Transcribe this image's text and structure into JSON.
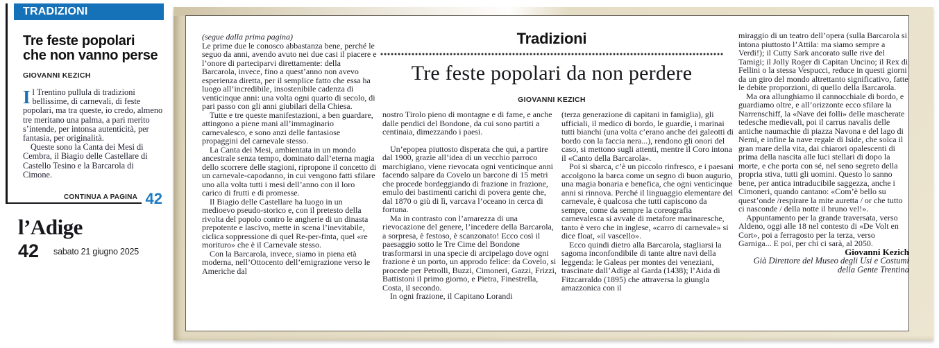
{
  "colors": {
    "accent_blue": "#1571b8",
    "page_ref_blue": "#1e7bc4",
    "panel_beige": "#e6ddc6"
  },
  "sidebar": {
    "section_label": "TRADIZIONI",
    "headline": "Tre feste popolari che non vanno perse",
    "byline": "GIOVANNI KEZICH",
    "dropcap": "I",
    "body_p1": "l Trentino pullula di tradizioni bellissime, di carnevali, di feste popolari, ma tra queste, io credo, almeno tre meritano una palma, a pari merito s’intende, per intonsa autenticità, per fantasia, per originalità.",
    "body_p2": "Queste sono la Canta dei Mesi di Cembra, il Biagio delle Castellare di Castello Tesino e la Barcarola di Cimone.",
    "continua_label": "CONTINUA A PAGINA",
    "continua_page": "42"
  },
  "masthead": {
    "logo": "l’Adige",
    "page_number": "42",
    "date": "sabato 21 giugno 2025"
  },
  "article": {
    "kicker": "Tradizioni",
    "title": "Tre feste popolari da non perdere",
    "byline": "GIOVANNI KEZICH",
    "continuation_note": "(segue dalla prima pagina)",
    "col1": {
      "p1": "Le prime due le conosco abbastanza bene, perché le seguo da anni, avendo avuto nei due casi il piacere e l’onore di parteciparvi direttamente: della Barcarola, invece, fino a quest’anno non avevo esperienza diretta, per il semplice fatto che essa ha luogo all’incredibile, insostenibile cadenza di venticinque anni: una volta ogni quarto di secolo, di pari passo con gli anni giubilari della Chiesa.",
      "p2": "Tutte e tre queste manifestazioni, a ben guardare, attingono a piene mani all’immaginario carnevalesco, e sono anzi delle fantasiose propaggini del carnevale stesso.",
      "p3": "La Canta dei Mesi, ambientata in un mondo ancestrale senza tempo, dominato dall’eterna magia dello scorrere delle stagioni, ripropone il concetto di un carnevale-capodanno, in cui vengono fatti sfilare uno alla volta tutti i mesi dell’anno con il loro carico di frutti e di promesse.",
      "p4": "Il Biagio delle Castellare ha luogo in un medioevo pseudo-storico e, con il pretesto della rivolta del popolo contro le angherie di un dinasta prepotente e lascivo, mette in scena l’inevitabile, ciclica soppressione di quel Re-per-finta, quel «re morituro» che è il Carnevale stesso.",
      "p5": "Con la Barcarola, invece, siamo in piena età moderna, nell’Ottocento dell’emigrazione verso le Americhe dal"
    },
    "col2": {
      "p1": "nostro Tirolo pieno di montagne e di fame, e anche dalle pendici del Bondone, da cui sono partiti a centinaia, dimezzando i paesi.",
      "p2": "Un’epopea piuttosto disperata che qui, a partire dal 1900, grazie all’idea di un vecchio parroco marchigiano, viene rievocata ogni venticinque anni facendo salpare da Covelo un barcone di 15 metri che procede bordeggiando di frazione in frazione, emulo dei bastimenti carichi di povera gente che, dal 1870 o giù di lì, varcava l’oceano in cerca di fortuna.",
      "p3": "Ma in contrasto con l’amarezza di una rievocazione del genere, l’incedere della Barcarola, a sorpresa, è festoso, è scanzonato! Ecco così il paesaggio sotto le Tre Cime del Bondone trasformarsi in una specie di arcipelago dove ogni frazione è un porto, un approdo felice: da Covelo, si procede per Petrolli, Buzzi, Cimoneri, Gazzi, Frizzi, Battistoni il primo giorno, e Pietra, Finestrella, Costa, il secondo.",
      "p4": "In ogni frazione, il Capitano Lorandi"
    },
    "col3": {
      "p1": "(terza generazione di capitani in famiglia), gli ufficiali, il medico di bordo, le guardie, i marinai tutti bianchi (una volta c’erano anche dei galeotti di bordo con la faccia nera...), rendono gli onori del caso, si mettono sugli attenti, mentre il Coro intona il «Canto della Barcarola».",
      "p2": "Poi si sbarca, c’è un piccolo rinfresco, e i paesani accolgono la barca come un segno di buon augurio, una magia bonaria e benefica, che ogni venticinque anni si rinnova. Perché il linguaggio elementare del carnevale, è qualcosa che tutti capiscono da sempre, come da sempre la coreografia carnevalesca si avvale di metafore marinaresche, tanto è vero che in inglese, «carro di carnevale» si dice float, «il vascello».",
      "p3": "Ecco quindi dietro alla Barcarola, stagliarsi la sagoma inconfondibile di tante altre navi della leggenda: le Galeas per montes dei veneziani, trascinate dall’Adige al Garda (1438); l’Aida di Fitzcarraldo (1895) che attraversa la giungla amazzonica con il"
    },
    "col4": {
      "p1": "miraggio di un teatro dell’opera (sulla Barcarola si intona piuttosto l’Attila: ma siamo sempre a Verdi!); il Cutty Sark ancorato sulle rive del Tamigi; il Jolly Roger di Capitan Uncino; il Rex di Fellini o la stessa Vespucci, reduce in questi giorni da un giro del mondo altrettanto significativo, fatte le debite proporzioni, di quello della Barcarola.",
      "p2": "Ma ora allunghiamo il cannocchiale di bordo, e guardiamo oltre, e all’orizzonte ecco sfilare la Narrenschiff, la «Nave dei folli» delle mascherate tedesche medievali, poi il carrus navalis delle antiche naumachie di piazza Navona e del lago di Nemi, e infine la nave regale di Iside, che solca il gran mare della vita, dai chiarori opalescenti di prima della nascita alle luci stellari di dopo la morte, e che porta con sé, nel seno segreto della propria stiva, tutti gli uomini. Questo lo sanno bene, per antica intraducibile saggezza, anche i Cimoneri, quando cantano: «Com’è bello su quest’onde /respirare la mite auretta / or che tutto ci nasconde / della notte il bruno vel!».",
      "p3": "Appuntamento per la grande traversata, verso Aldeno, oggi alle 18 nel contesto di «De Volt en Cort», poi a ferragosto per la terza, verso Garniga... E poi, per chi ci sarà, al 2050."
    },
    "signature_name": "Giovanni Kezich",
    "signature_role": "Già Direttore del Museo degli Usi e Costumi della Gente Trentina"
  }
}
